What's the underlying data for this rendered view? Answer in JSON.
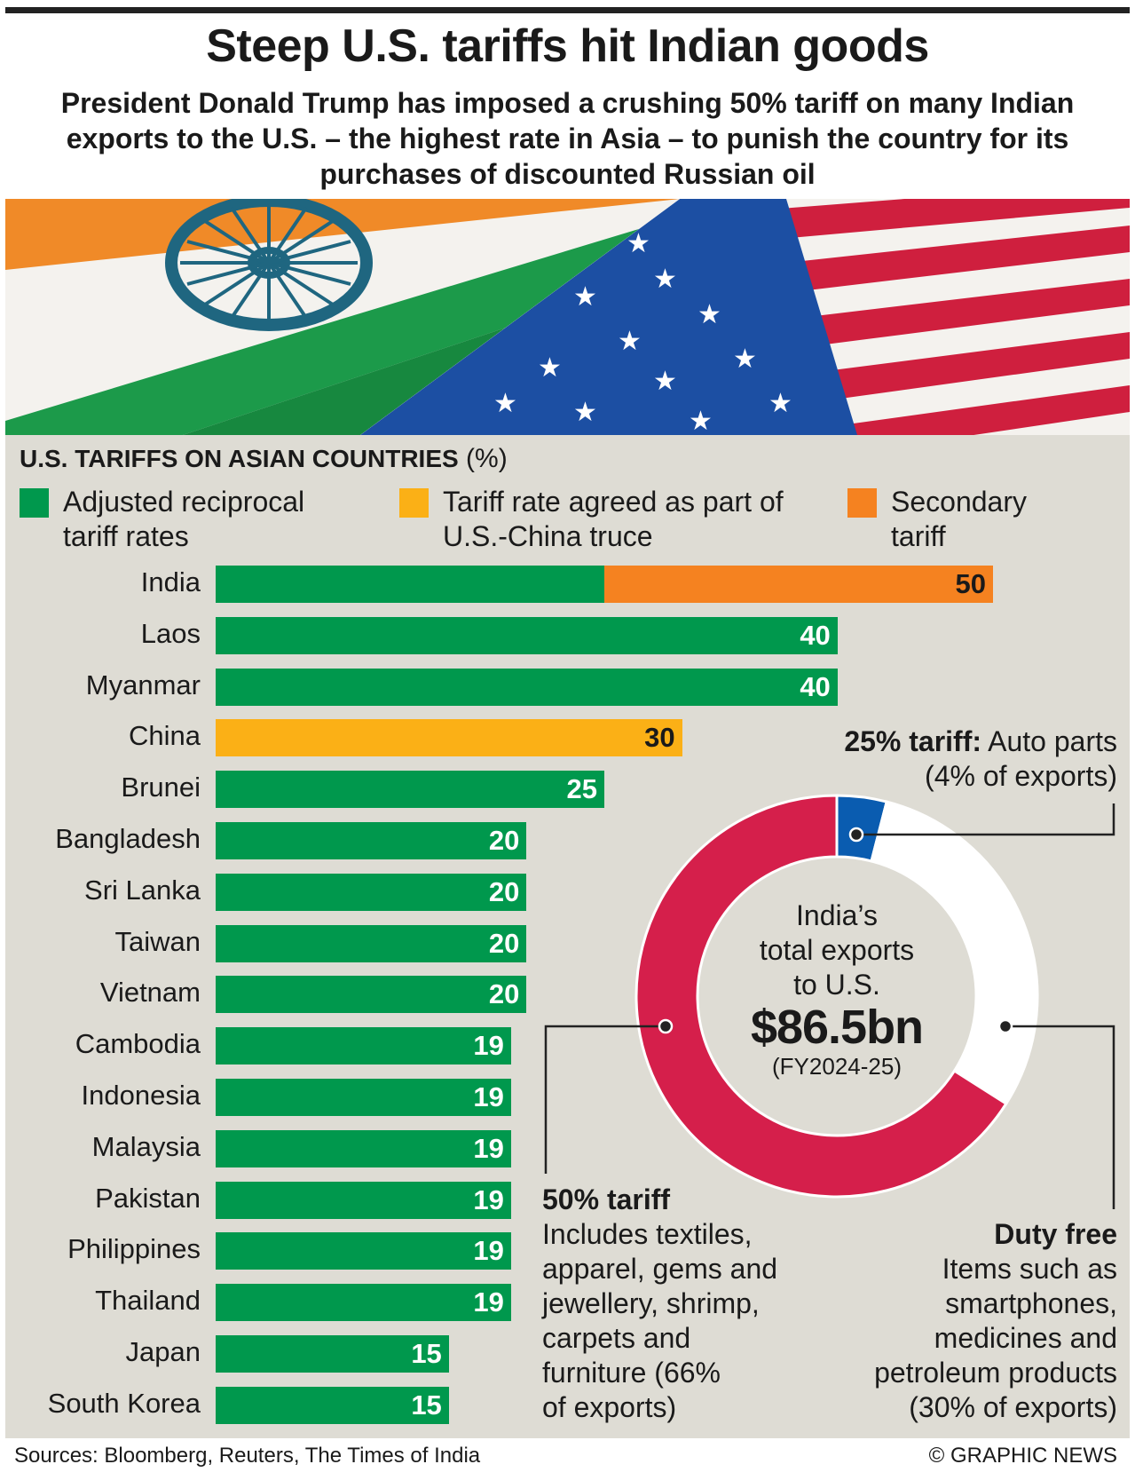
{
  "header": {
    "title": "Steep U.S. tariffs hit Indian goods",
    "subtitle": "President Donald Trump has imposed a crushing 50% tariff on many Indian exports to the U.S. – the highest rate in Asia – to punish the country for its purchases of discounted Russian oil"
  },
  "colors": {
    "reciprocal": "#00984d",
    "china_truce": "#fbb016",
    "secondary": "#f58220",
    "tariff_50": "#d51f4b",
    "tariff_25": "#0a5cb0",
    "duty_free": "#ffffff",
    "panel": "#dedcd4"
  },
  "chart_data": [
    {
      "type": "bar",
      "orientation": "horizontal",
      "stacked": true,
      "title": "U.S. Tariffs on Asian Countries",
      "unit": "(%)",
      "legend": [
        {
          "name": "Adjusted reciprocal tariff rates",
          "color": "#00984d"
        },
        {
          "name": "Tariff rate agreed as part of U.S.-China truce",
          "color": "#fbb016"
        },
        {
          "name": "Secondary tariff",
          "color": "#f58220"
        }
      ],
      "categories": [
        "India",
        "Laos",
        "Myanmar",
        "China",
        "Brunei",
        "Bangladesh",
        "Sri Lanka",
        "Taiwan",
        "Vietnam",
        "Cambodia",
        "Indonesia",
        "Malaysia",
        "Pakistan",
        "Philippines",
        "Thailand",
        "Japan",
        "South Korea"
      ],
      "series": [
        {
          "name": "Adjusted reciprocal tariff rates",
          "values": [
            25,
            40,
            40,
            0,
            25,
            20,
            20,
            20,
            20,
            19,
            19,
            19,
            19,
            19,
            19,
            15,
            15
          ]
        },
        {
          "name": "Tariff rate agreed as part of U.S.-China truce",
          "values": [
            0,
            0,
            0,
            30,
            0,
            0,
            0,
            0,
            0,
            0,
            0,
            0,
            0,
            0,
            0,
            0,
            0
          ]
        },
        {
          "name": "Secondary tariff",
          "values": [
            25,
            0,
            0,
            0,
            0,
            0,
            0,
            0,
            0,
            0,
            0,
            0,
            0,
            0,
            0,
            0,
            0
          ]
        }
      ],
      "totals": [
        "50",
        "40",
        "40",
        "30",
        "25",
        "20",
        "20",
        "20",
        "20",
        "19",
        "19",
        "19",
        "19",
        "19",
        "19",
        "15",
        "15"
      ],
      "xlim": [
        0,
        50
      ],
      "grid": false
    },
    {
      "type": "pie",
      "donut": true,
      "center_text": {
        "line1": "India’s",
        "line2": "total exports",
        "line3": "to U.S.",
        "value": "$86.5bn",
        "period": "(FY2024-25)"
      },
      "slices": [
        {
          "label": "25% tariff",
          "percent": 4,
          "color": "#0a5cb0"
        },
        {
          "label": "Duty free",
          "percent": 30,
          "color": "#ffffff"
        },
        {
          "label": "50% tariff",
          "percent": 66,
          "color": "#d51f4b"
        }
      ]
    }
  ],
  "annotations": {
    "auto_head": "25% tariff:",
    "auto_body": " Auto parts",
    "auto_share": "(4% of exports)",
    "t50_head": "50% tariff",
    "t50_lines": [
      "Includes textiles,",
      "apparel, gems and",
      "jewellery, shrimp,",
      "carpets and",
      "furniture (66%",
      "of exports)"
    ],
    "free_head": "Duty free",
    "free_lines": [
      "Items such as",
      "smartphones,",
      "medicines and",
      "petroleum products",
      "(30% of exports)"
    ]
  },
  "footer": {
    "sources": "Sources: Bloomberg, Reuters, The Times of India",
    "credit": "© GRAPHIC NEWS"
  }
}
